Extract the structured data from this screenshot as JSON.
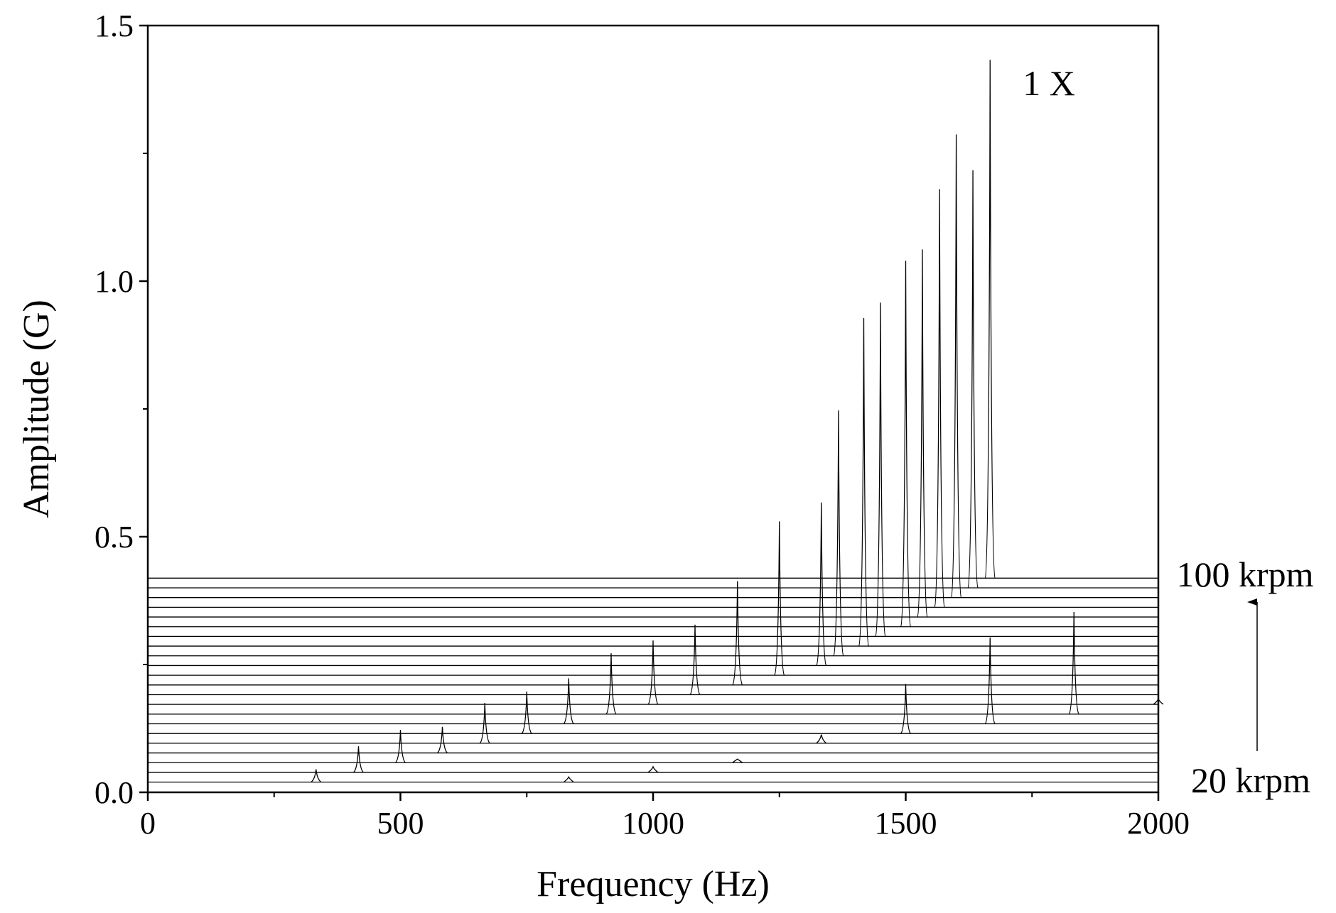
{
  "chart_data": {
    "type": "waterfall",
    "xlabel": "Frequency (Hz)",
    "ylabel": "Amplitude (G)",
    "xlim": [
      0,
      2000
    ],
    "xticks": [
      0,
      500,
      1000,
      1500,
      2000
    ],
    "xminorticks": [
      250,
      750,
      1250,
      1750
    ],
    "ylim": [
      0,
      1.5
    ],
    "yticks": [
      {
        "value": 0,
        "label": "0.0"
      },
      0.5,
      {
        "value": 1,
        "label": "1.0"
      },
      1.5
    ],
    "yminorticks": [
      0.25,
      0.75,
      1.25
    ],
    "color": "#000000",
    "annotations": [
      "1 X",
      "100 krpm",
      "20 krpm"
    ],
    "series": [
      {
        "baseline": 0.02,
        "x": [
          333,
          833
        ],
        "values": [
          0.045,
          0.03
        ]
      },
      {
        "baseline": 0.039,
        "x": [
          417,
          1000
        ],
        "values": [
          0.09,
          0.05
        ]
      },
      {
        "baseline": 0.058,
        "x": [
          500,
          1167
        ],
        "values": [
          0.122,
          0.065
        ]
      },
      {
        "baseline": 0.077,
        "x": [
          583
        ],
        "values": [
          0.128
        ]
      },
      {
        "baseline": 0.096,
        "x": [
          667,
          1333
        ],
        "values": [
          0.175,
          0.113
        ]
      },
      {
        "baseline": 0.115,
        "x": [
          750,
          1500
        ],
        "values": [
          0.197,
          0.212
        ]
      },
      {
        "baseline": 0.134,
        "x": [
          833,
          1667
        ],
        "values": [
          0.223,
          0.303
        ]
      },
      {
        "baseline": 0.153,
        "x": [
          917,
          1833
        ],
        "values": [
          0.272,
          0.353
        ]
      },
      {
        "baseline": 0.172,
        "x": [
          1000,
          2000
        ],
        "values": [
          0.297,
          0.183
        ]
      },
      {
        "baseline": 0.191,
        "x": [
          1083
        ],
        "values": [
          0.328
        ]
      },
      {
        "baseline": 0.21,
        "x": [
          1167
        ],
        "values": [
          0.413
        ]
      },
      {
        "baseline": 0.229,
        "x": [
          1250
        ],
        "values": [
          0.53
        ]
      },
      {
        "baseline": 0.248,
        "x": [
          1333
        ],
        "values": [
          0.567
        ]
      },
      {
        "baseline": 0.267,
        "x": [
          1367
        ],
        "values": [
          0.747
        ]
      },
      {
        "baseline": 0.286,
        "x": [
          1417
        ],
        "values": [
          0.928
        ]
      },
      {
        "baseline": 0.305,
        "x": [
          1450
        ],
        "values": [
          0.958
        ]
      },
      {
        "baseline": 0.324,
        "x": [
          1500
        ],
        "values": [
          1.04
        ]
      },
      {
        "baseline": 0.343,
        "x": [
          1533
        ],
        "values": [
          1.062
        ]
      },
      {
        "baseline": 0.362,
        "x": [
          1567
        ],
        "values": [
          1.18
        ]
      },
      {
        "baseline": 0.381,
        "x": [
          1600
        ],
        "values": [
          1.287
        ]
      },
      {
        "baseline": 0.4,
        "x": [
          1633
        ],
        "values": [
          1.217
        ]
      },
      {
        "baseline": 0.419,
        "x": [
          1667
        ],
        "values": [
          1.433
        ]
      }
    ]
  }
}
